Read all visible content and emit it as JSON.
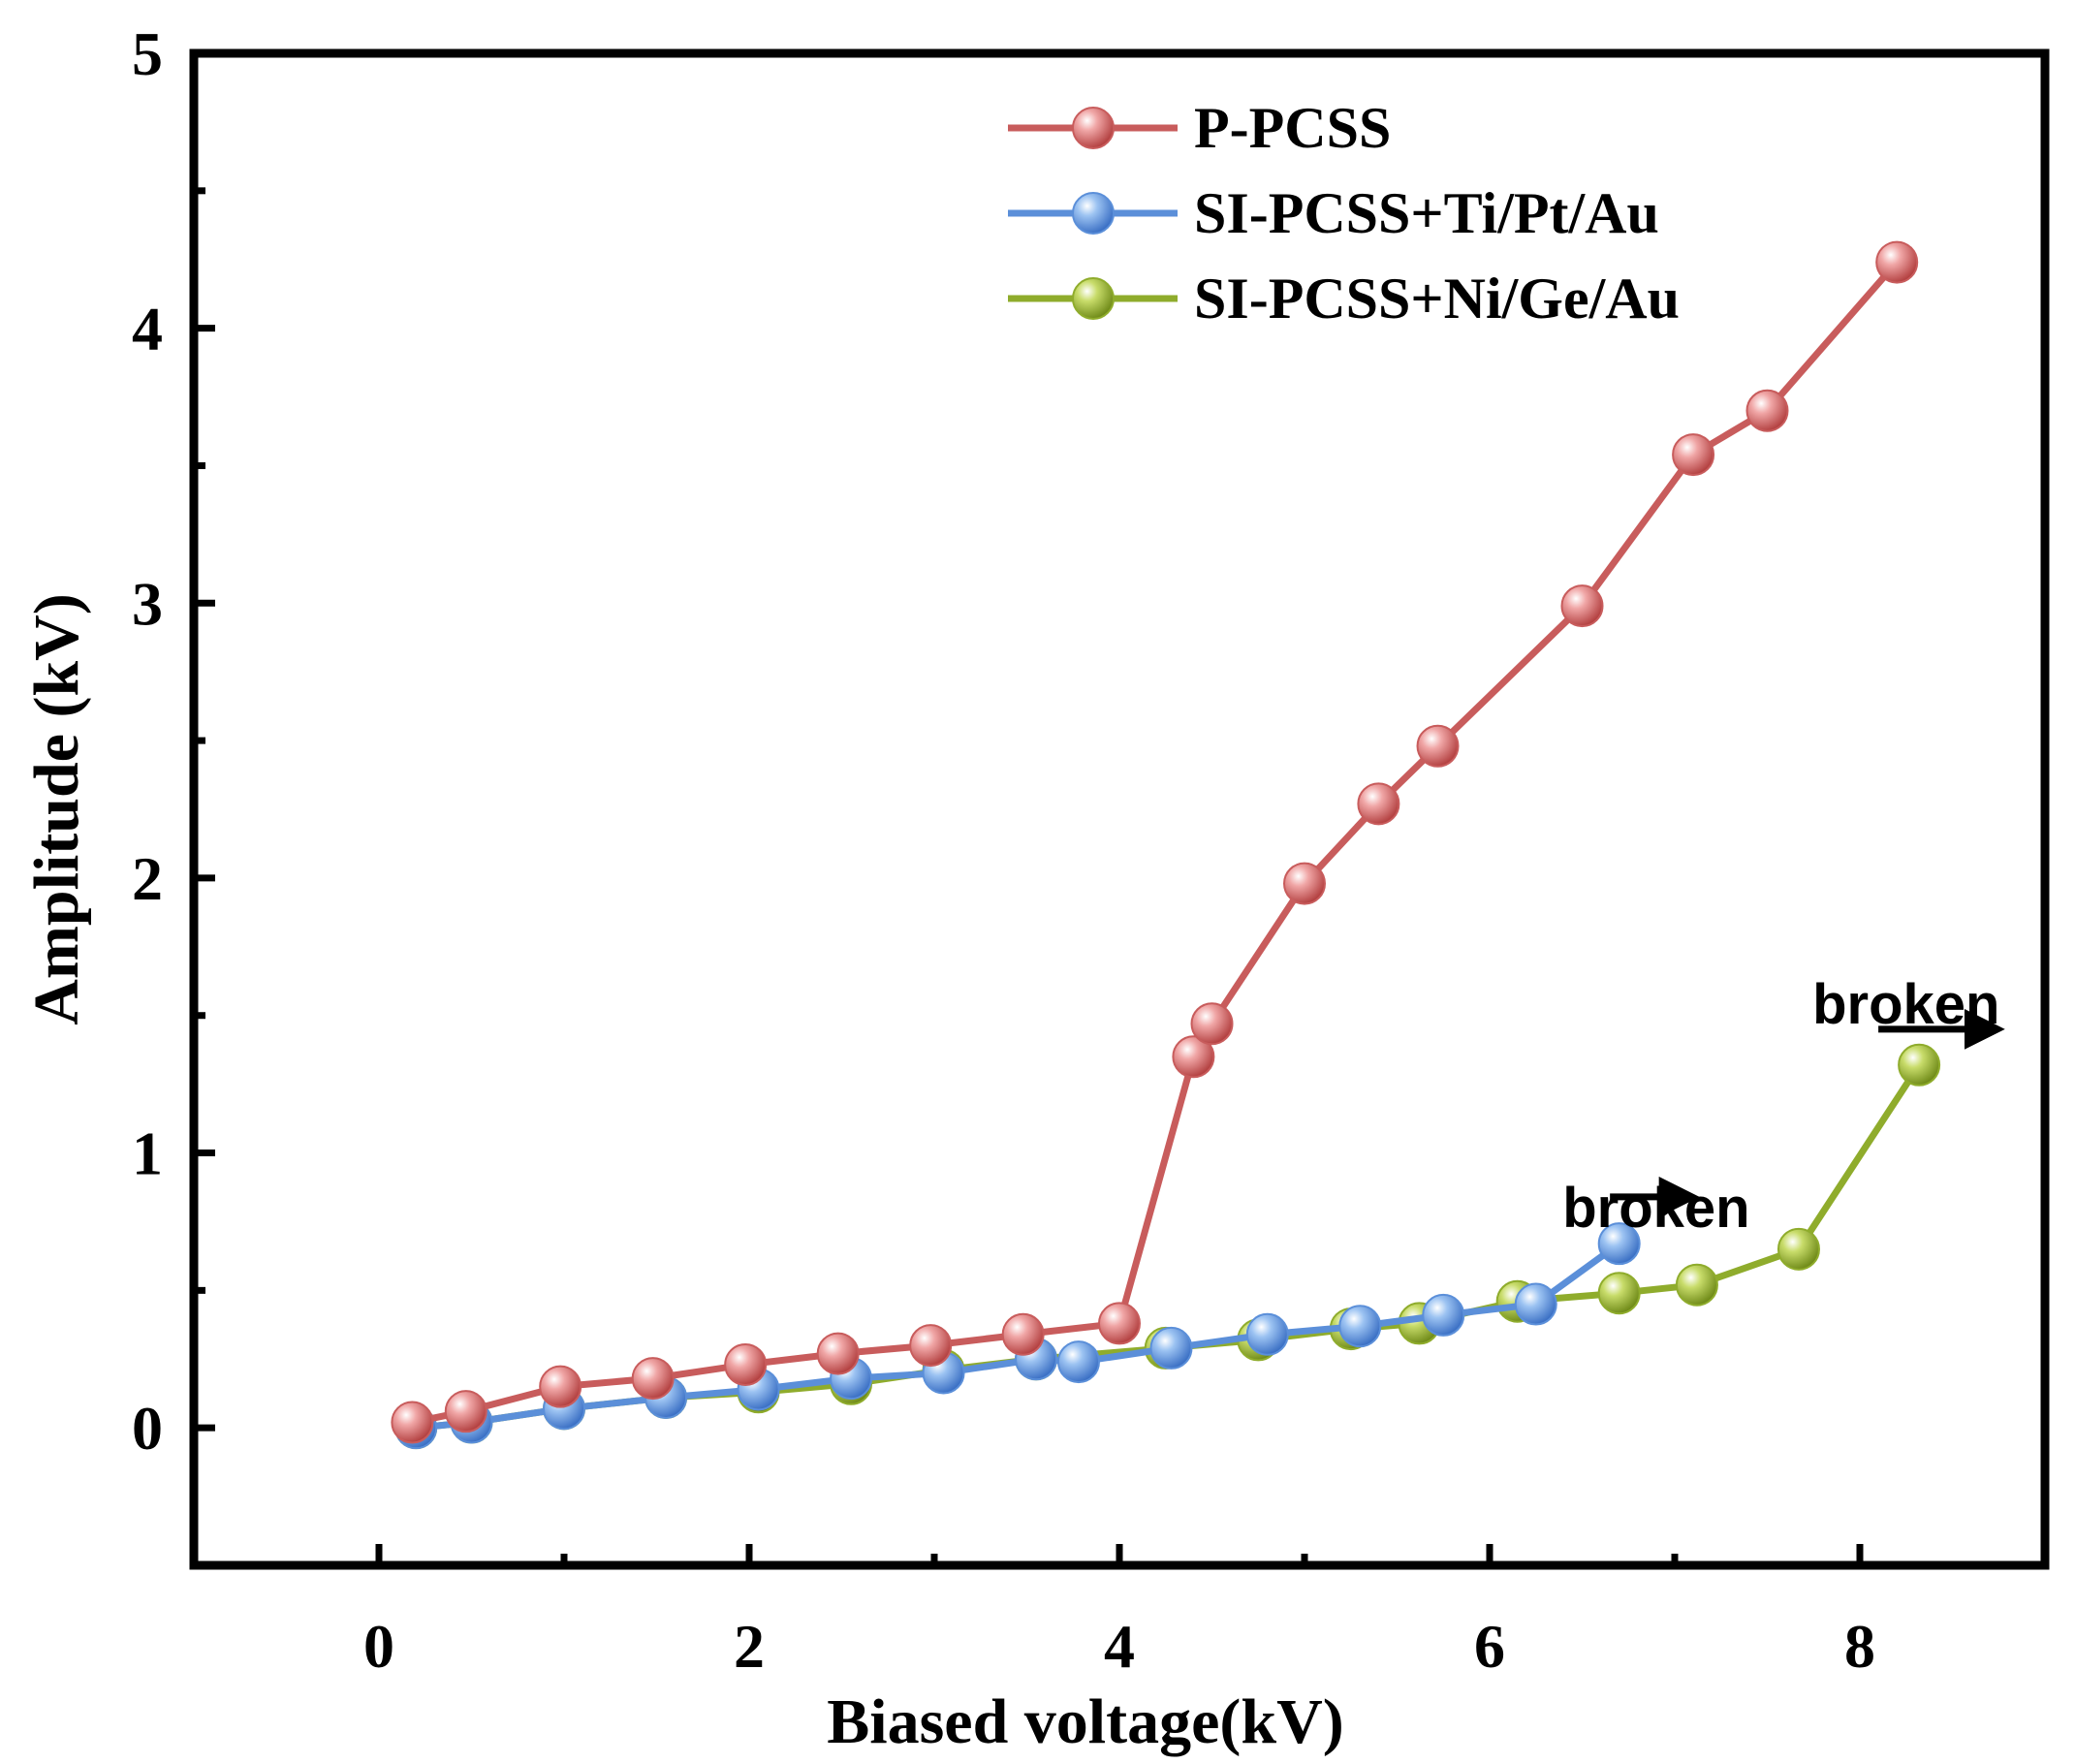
{
  "chart_data": {
    "type": "line",
    "xlabel": "Biased voltage(kV)",
    "ylabel": "Amplitude (kV)",
    "xlim": [
      -1,
      9
    ],
    "ylim": [
      -0.5,
      5
    ],
    "xticks": [
      0,
      2,
      4,
      6,
      8
    ],
    "xtick_labels": [
      "0",
      "2",
      "4",
      "6",
      "8"
    ],
    "xminor": [
      1,
      3,
      5,
      7
    ],
    "yticks": [
      0,
      1,
      2,
      3,
      4,
      5
    ],
    "ytick_labels": [
      "0",
      "1",
      "2",
      "3",
      "4",
      "5"
    ],
    "yminor": [
      0.5,
      1.5,
      2.5,
      3.5,
      4.5
    ],
    "grid": false,
    "legend_position": "top-right",
    "series": [
      {
        "name": "P-PCSS",
        "color": "#c85c5c",
        "x": [
          0.18,
          0.47,
          0.98,
          1.48,
          1.98,
          2.48,
          2.98,
          3.48,
          4.0,
          4.4,
          4.5,
          5.0,
          5.4,
          5.72,
          6.5,
          7.1,
          7.5,
          8.2
        ],
        "y": [
          0.02,
          0.06,
          0.15,
          0.18,
          0.23,
          0.27,
          0.3,
          0.34,
          0.38,
          1.35,
          1.47,
          1.98,
          2.27,
          2.48,
          2.99,
          3.54,
          3.7,
          4.24
        ]
      },
      {
        "name": "SI-PCSS+Ti/Pt/Au",
        "color": "#5b8fd9",
        "x": [
          0.2,
          0.5,
          1.0,
          1.55,
          2.05,
          2.55,
          3.05,
          3.55,
          3.78,
          4.28,
          4.8,
          5.3,
          5.75,
          6.25,
          6.7
        ],
        "y": [
          0.0,
          0.02,
          0.07,
          0.11,
          0.14,
          0.18,
          0.2,
          0.25,
          0.24,
          0.29,
          0.34,
          0.37,
          0.41,
          0.45,
          0.67
        ]
      },
      {
        "name": "SI-PCSS+Ni/Ge/Au",
        "color": "#8fac2c",
        "x": [
          0.2,
          0.5,
          1.0,
          1.55,
          2.05,
          2.55,
          3.05,
          3.55,
          4.25,
          4.75,
          5.25,
          5.62,
          6.15,
          6.7,
          7.12,
          7.67,
          8.32
        ],
        "y": [
          0.0,
          0.02,
          0.07,
          0.11,
          0.13,
          0.16,
          0.21,
          0.25,
          0.29,
          0.32,
          0.36,
          0.38,
          0.46,
          0.49,
          0.52,
          0.65,
          1.32
        ]
      }
    ],
    "annotations": [
      {
        "text": "broken",
        "x": 6.9,
        "y": 0.73,
        "arrow_from": [
          6.65,
          0.84
        ],
        "arrow_to": [
          7.15,
          0.84
        ]
      },
      {
        "text": "broken",
        "x": 8.25,
        "y": 1.47,
        "arrow_from": [
          8.1,
          1.45
        ],
        "arrow_to": [
          8.8,
          1.45
        ]
      }
    ]
  }
}
